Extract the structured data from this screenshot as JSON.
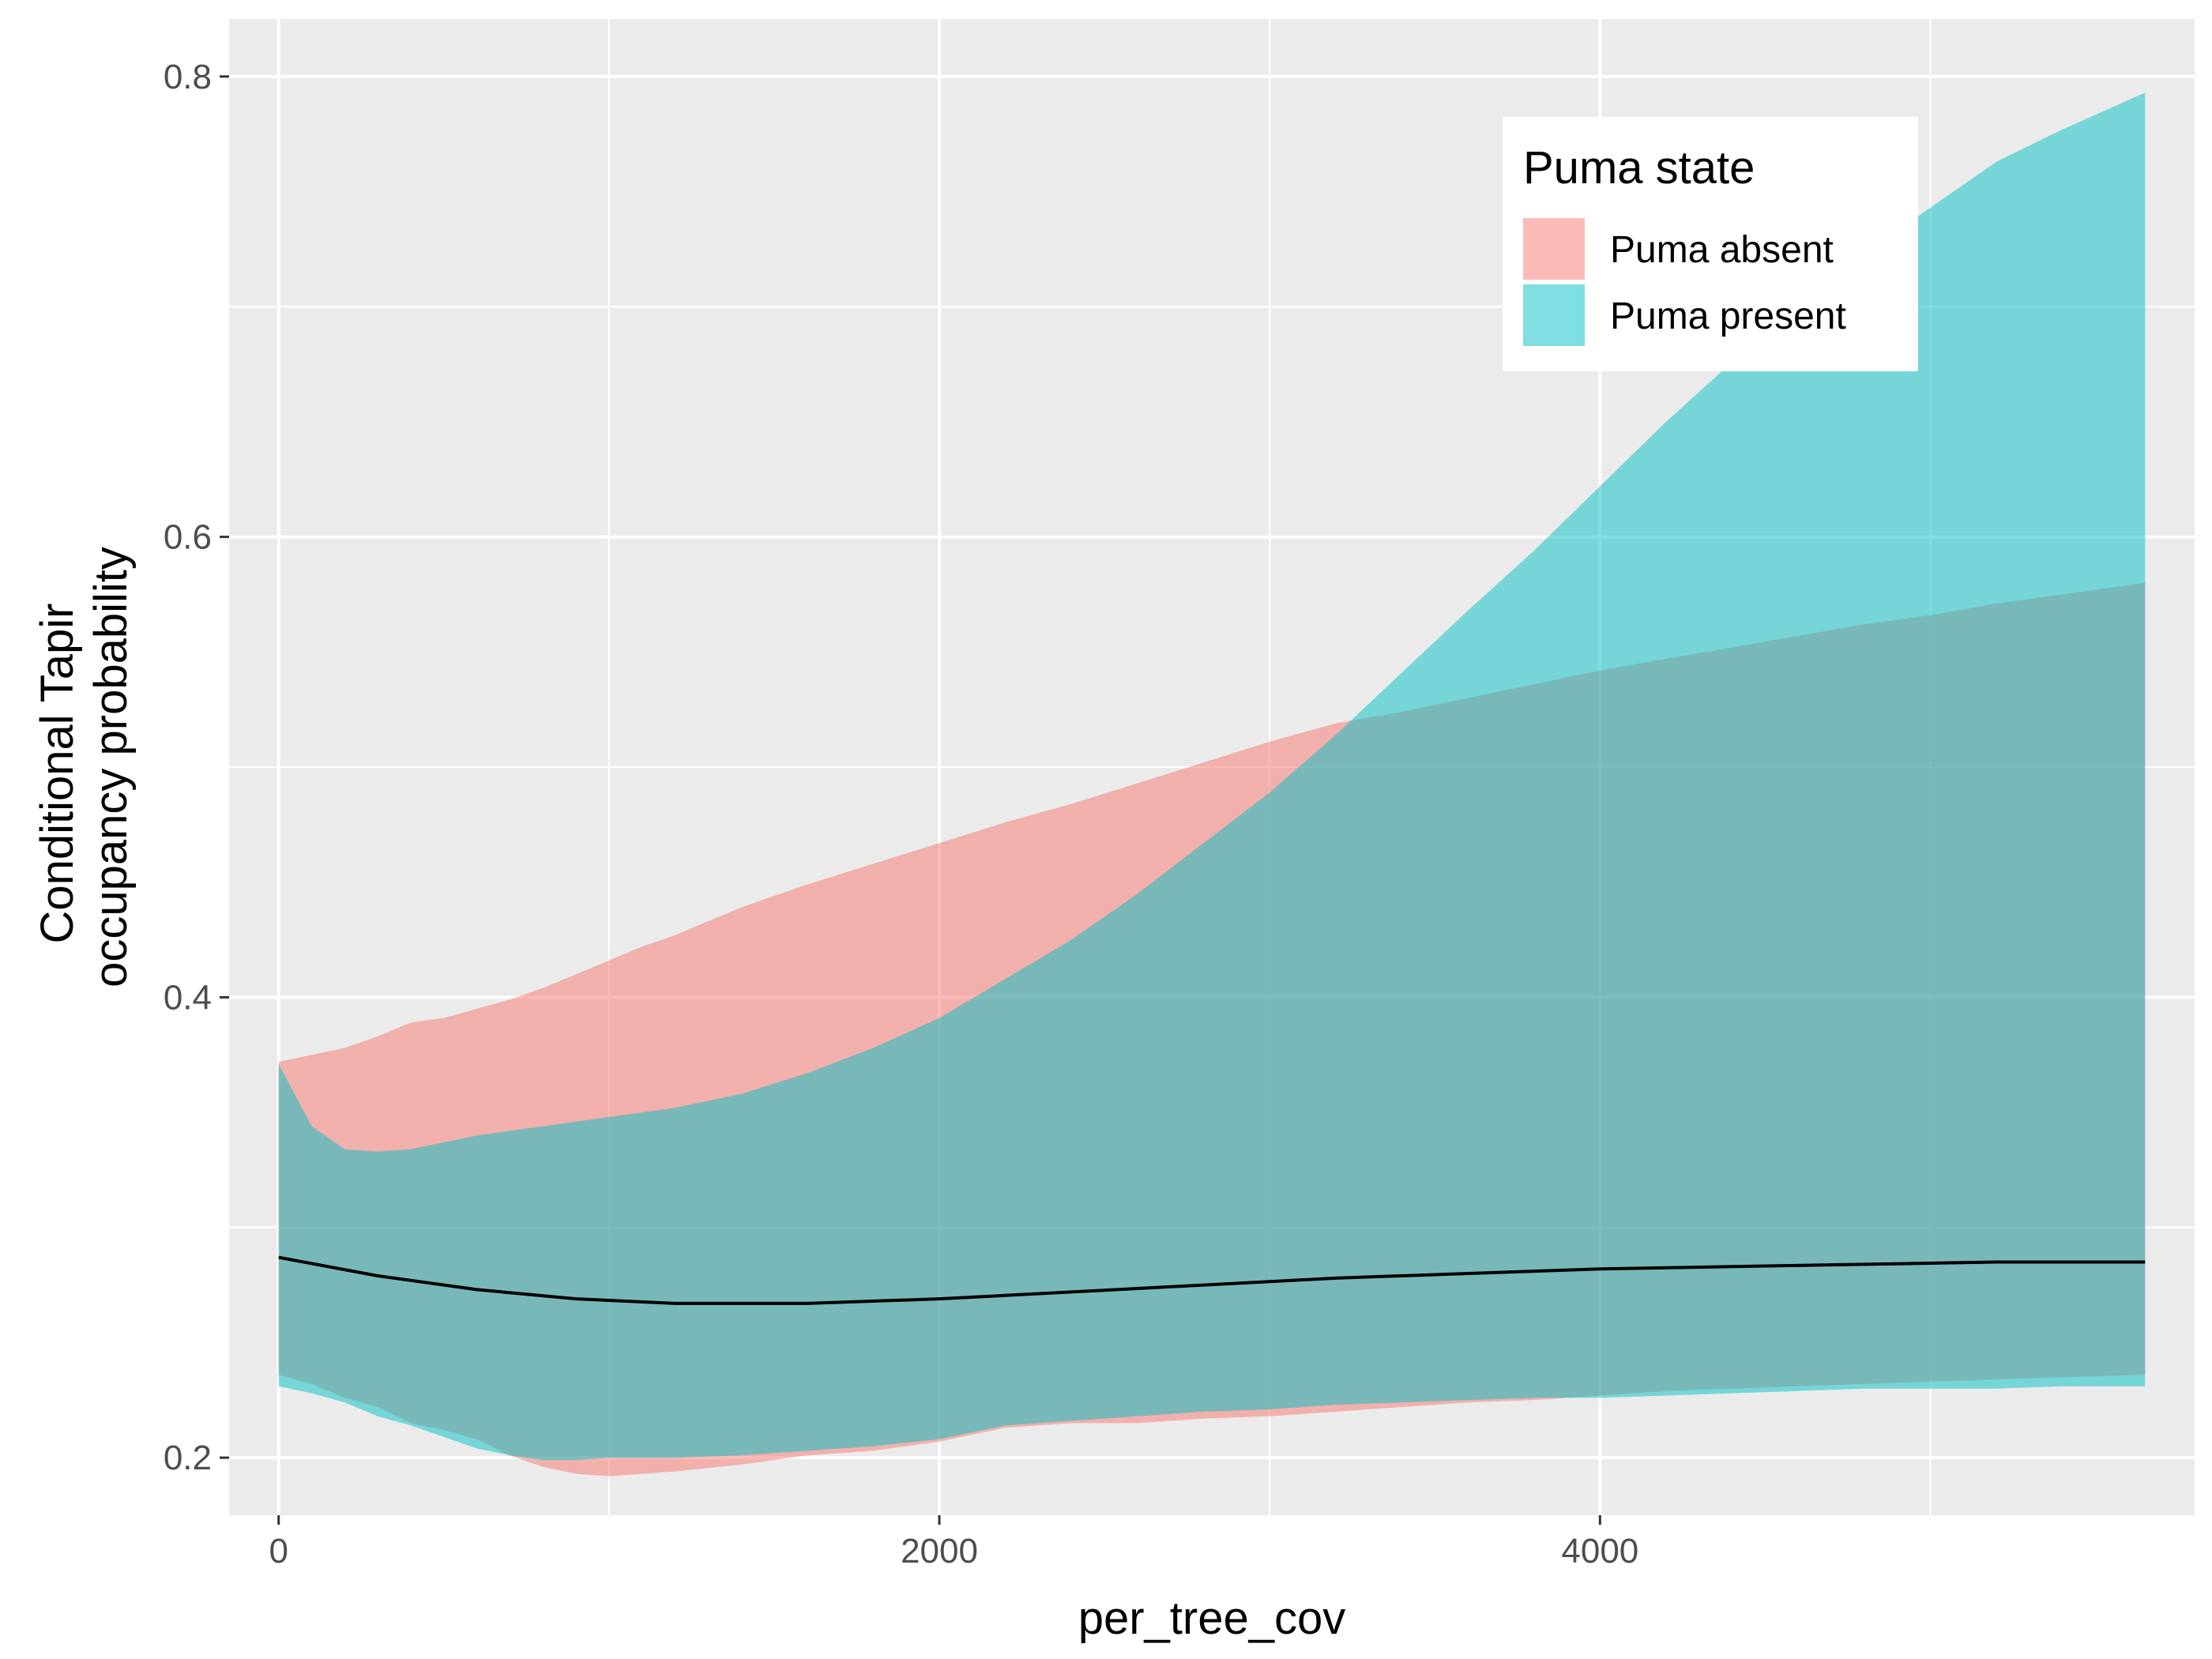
{
  "chart_data": {
    "type": "area",
    "xlabel": "per_tree_cov",
    "ylabel_lines": [
      "Conditional Tapir",
      "occupancy probability"
    ],
    "xlim": [
      -150,
      5800
    ],
    "ylim": [
      0.175,
      0.825
    ],
    "x_ticks": [
      0,
      2000,
      4000
    ],
    "x_tick_labels": [
      "0",
      "2000",
      "4000"
    ],
    "x_minor_ticks": [
      1000,
      3000,
      5000
    ],
    "y_ticks": [
      0.2,
      0.4,
      0.6,
      0.8
    ],
    "y_tick_labels": [
      "0.2",
      "0.4",
      "0.6",
      "0.8"
    ],
    "y_minor_ticks": [
      0.3,
      0.5,
      0.7
    ],
    "grid": true,
    "legend": {
      "title": "Puma state",
      "position": "top-right",
      "entries": [
        "Puma absent",
        "Puma present"
      ]
    },
    "series": [
      {
        "name": "Puma absent",
        "color": "#F8766D",
        "x": [
          0,
          100,
          200,
          300,
          400,
          500,
          600,
          700,
          800,
          900,
          1000,
          1100,
          1200,
          1400,
          1600,
          1800,
          2000,
          2200,
          2400,
          2600,
          2800,
          3000,
          3200,
          3400,
          3600,
          3800,
          4000,
          4200,
          4400,
          4600,
          4800,
          5000,
          5200,
          5400,
          5650
        ],
        "lower": [
          0.236,
          0.232,
          0.226,
          0.222,
          0.215,
          0.212,
          0.208,
          0.201,
          0.196,
          0.193,
          0.192,
          0.193,
          0.194,
          0.197,
          0.201,
          0.203,
          0.207,
          0.213,
          0.215,
          0.215,
          0.217,
          0.218,
          0.22,
          0.222,
          0.224,
          0.225,
          0.227,
          0.229,
          0.23,
          0.231,
          0.232,
          0.233,
          0.234,
          0.235,
          0.236
        ],
        "upper": [
          0.372,
          0.375,
          0.378,
          0.383,
          0.389,
          0.391,
          0.395,
          0.399,
          0.404,
          0.41,
          0.416,
          0.422,
          0.427,
          0.439,
          0.449,
          0.458,
          0.467,
          0.476,
          0.484,
          0.493,
          0.502,
          0.511,
          0.519,
          0.524,
          0.53,
          0.536,
          0.542,
          0.547,
          0.552,
          0.557,
          0.562,
          0.566,
          0.571,
          0.575,
          0.58
        ]
      },
      {
        "name": "Puma present",
        "color": "#00BFC4",
        "x": [
          0,
          100,
          200,
          300,
          400,
          500,
          600,
          700,
          800,
          900,
          1000,
          1100,
          1200,
          1400,
          1600,
          1800,
          2000,
          2200,
          2400,
          2600,
          2800,
          3000,
          3200,
          3400,
          3600,
          3800,
          4000,
          4200,
          4400,
          4600,
          4800,
          5000,
          5200,
          5400,
          5650
        ],
        "lower": [
          0.231,
          0.228,
          0.224,
          0.218,
          0.214,
          0.209,
          0.204,
          0.201,
          0.199,
          0.199,
          0.2,
          0.2,
          0.2,
          0.201,
          0.203,
          0.205,
          0.208,
          0.214,
          0.216,
          0.218,
          0.22,
          0.221,
          0.223,
          0.224,
          0.225,
          0.226,
          0.226,
          0.227,
          0.228,
          0.229,
          0.23,
          0.23,
          0.23,
          0.231,
          0.231
        ],
        "upper": [
          0.371,
          0.344,
          0.334,
          0.333,
          0.334,
          0.337,
          0.34,
          0.342,
          0.344,
          0.346,
          0.348,
          0.35,
          0.352,
          0.358,
          0.367,
          0.378,
          0.391,
          0.408,
          0.425,
          0.445,
          0.467,
          0.489,
          0.514,
          0.541,
          0.568,
          0.594,
          0.622,
          0.65,
          0.676,
          0.701,
          0.723,
          0.743,
          0.763,
          0.777,
          0.793
        ]
      }
    ],
    "mean_line": {
      "color": "#000000",
      "x": [
        0,
        300,
        600,
        900,
        1200,
        1600,
        2000,
        2400,
        2800,
        3200,
        3600,
        4000,
        4400,
        4800,
        5200,
        5650
      ],
      "y": [
        0.287,
        0.279,
        0.273,
        0.269,
        0.267,
        0.267,
        0.269,
        0.272,
        0.275,
        0.278,
        0.28,
        0.282,
        0.283,
        0.284,
        0.285,
        0.285
      ]
    }
  }
}
